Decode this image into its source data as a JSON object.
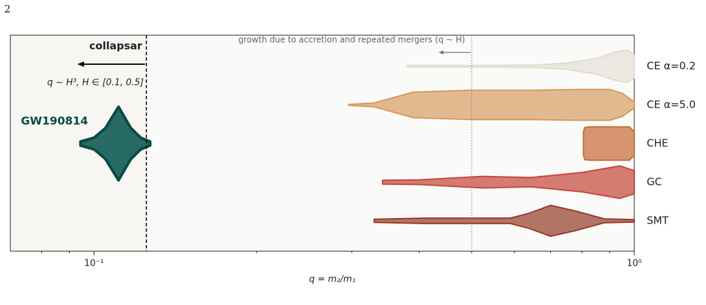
{
  "page_number": "2",
  "chart_data": {
    "type": "violin",
    "xlabel": "q = m₂/m₁",
    "xscale": "log",
    "xlim": [
      0.07,
      1.0
    ],
    "xticks": [
      {
        "value": 0.1,
        "label": "10⁻¹"
      },
      {
        "value": 1.0,
        "label": "10⁰"
      }
    ],
    "xminorticks": [
      0.08,
      0.09,
      0.2,
      0.3,
      0.4,
      0.5,
      0.6,
      0.7,
      0.8,
      0.9
    ],
    "categories": [
      "CE  α=0.2",
      "CE  α=5.0",
      "CHE",
      "GC",
      "SMT"
    ],
    "series": [
      {
        "name": "CE  α=0.2",
        "color": "#ece8e1",
        "edge": "#e2dcd2",
        "q": [
          0.38,
          0.5,
          0.65,
          0.75,
          0.85,
          0.93,
          0.97,
          1.0
        ],
        "width": [
          0.02,
          0.02,
          0.03,
          0.08,
          0.2,
          0.38,
          0.42,
          0.3
        ]
      },
      {
        "name": "CE  α=5.0",
        "color": "#e2b98f",
        "edge": "#d59a5e",
        "q": [
          0.296,
          0.33,
          0.39,
          0.5,
          0.65,
          0.8,
          0.9,
          0.95,
          1.0
        ],
        "width": [
          0.01,
          0.05,
          0.33,
          0.38,
          0.38,
          0.4,
          0.4,
          0.3,
          0.08
        ]
      },
      {
        "name": "CHE",
        "color": "#d69570",
        "edge": "#c8703e",
        "q": [
          0.805,
          0.81,
          0.83,
          0.98,
          1.0
        ],
        "width": [
          0.3,
          0.42,
          0.43,
          0.43,
          0.3
        ]
      },
      {
        "name": "GC",
        "color": "#d47b72",
        "edge": "#c8473d",
        "q": [
          0.342,
          0.4,
          0.524,
          0.644,
          0.8,
          0.94,
          1.0
        ],
        "width": [
          0.05,
          0.06,
          0.15,
          0.12,
          0.25,
          0.42,
          0.3
        ]
      },
      {
        "name": "SMT",
        "color": "#b27565",
        "edge": "#983a2e",
        "q": [
          0.33,
          0.41,
          0.59,
          0.64,
          0.7,
          0.78,
          0.88,
          1.0
        ],
        "width": [
          0.04,
          0.07,
          0.07,
          0.2,
          0.4,
          0.25,
          0.05,
          0.03
        ]
      }
    ],
    "event": {
      "name": "GW190814",
      "color": "#276b64",
      "edge": "#0a4a44",
      "q": [
        0.0944,
        0.1,
        0.105,
        0.111,
        0.117,
        0.122,
        0.127
      ],
      "width": [
        0.05,
        0.15,
        0.4,
        0.95,
        0.4,
        0.15,
        0.05
      ]
    },
    "annotations": [
      {
        "text": "collapsar",
        "subtext": "q ~ H³,   H ∈ [0.1, 0.5]",
        "q": 0.125
      },
      {
        "text": "growth due to accretion and repeated mergers (q ~ H)",
        "q": 0.5
      }
    ]
  }
}
